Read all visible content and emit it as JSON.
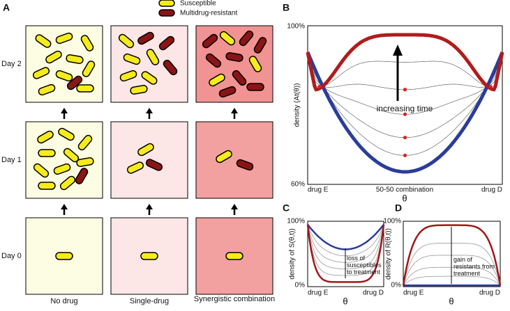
{
  "panels": {
    "A": {
      "label": "A",
      "legend": [
        "Susceptible",
        "Multidrug-resistant"
      ],
      "rows": [
        "Day 2",
        "Day 1",
        "Day 0"
      ],
      "columns": [
        "No drug",
        "Single-drug",
        "Synergistic combination"
      ]
    },
    "B": {
      "label": "B",
      "y_top": "100%",
      "y_bottom": "60%",
      "y_label": "density (At(θ))",
      "x_left": "drug E",
      "x_mid": "50-50 combination",
      "x_right": "drug D",
      "x_label": "θ",
      "annotation": "increasing time"
    },
    "C": {
      "label": "C",
      "y_top": "100%",
      "y_bottom": "0%",
      "y_label": "density of S(θ,t))",
      "x_left": "drug E",
      "x_right": "drug D",
      "x_label": "θ",
      "annotation": "loss of susceptibles to treatment"
    },
    "D": {
      "label": "D",
      "y_top": "100%",
      "y_bottom": "0%",
      "y_label": "density of R(θ,t))",
      "x_left": "drug E",
      "x_right": "drug D",
      "x_label": "θ",
      "annotation": "gain of resistants from treatment"
    }
  }
}
